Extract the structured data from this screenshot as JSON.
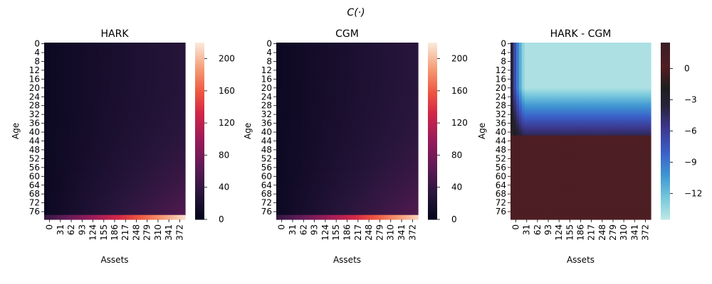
{
  "figure_title": "C(·)",
  "chart_data": [
    {
      "type": "heatmap",
      "title": "HARK",
      "xlabel": "Assets",
      "ylabel": "Age",
      "x_ticks": [
        "0",
        "31",
        "62",
        "93",
        "124",
        "155",
        "186",
        "217",
        "248",
        "279",
        "310",
        "341",
        "372"
      ],
      "y_ticks": [
        "0",
        "4",
        "8",
        "12",
        "16",
        "20",
        "24",
        "28",
        "32",
        "36",
        "40",
        "44",
        "48",
        "52",
        "56",
        "60",
        "64",
        "68",
        "72",
        "76"
      ],
      "colormap": "rocket",
      "colorbar_ticks": [
        0,
        40,
        80,
        120,
        160,
        200
      ],
      "vmin": 0,
      "vmax": 220,
      "description_values": {
        "min_at": "low assets, young age",
        "max_at": "highest assets, oldest age",
        "max_value": 215
      }
    },
    {
      "type": "heatmap",
      "title": "CGM",
      "xlabel": "Assets",
      "ylabel": "Age",
      "x_ticks": [
        "0",
        "31",
        "62",
        "93",
        "124",
        "155",
        "186",
        "217",
        "248",
        "279",
        "310",
        "341",
        "372"
      ],
      "y_ticks": [
        "0",
        "4",
        "8",
        "12",
        "16",
        "20",
        "24",
        "28",
        "32",
        "36",
        "40",
        "44",
        "48",
        "52",
        "56",
        "60",
        "64",
        "68",
        "72",
        "76"
      ],
      "colormap": "rocket",
      "colorbar_ticks": [
        0,
        40,
        80,
        120,
        160,
        200
      ],
      "vmin": 0,
      "vmax": 220,
      "description_values": {
        "max_value": 210
      }
    },
    {
      "type": "heatmap",
      "title": "HARK - CGM",
      "xlabel": "Assets",
      "ylabel": "Age",
      "x_ticks": [
        "0",
        "31",
        "62",
        "93",
        "124",
        "155",
        "186",
        "217",
        "248",
        "279",
        "310",
        "341",
        "372"
      ],
      "y_ticks": [
        "0",
        "4",
        "8",
        "12",
        "16",
        "20",
        "24",
        "28",
        "32",
        "36",
        "40",
        "44",
        "48",
        "52",
        "56",
        "60",
        "64",
        "68",
        "72",
        "76"
      ],
      "colormap": "icefire",
      "colorbar_ticks": [
        0,
        -3,
        -6,
        -9,
        -12
      ],
      "vmin": -14.5,
      "vmax": 2.5,
      "description_values": {
        "min_value": -14,
        "rows_with_large_negative": "ages 0-41",
        "rows_near_zero": "ages 42-79"
      }
    }
  ]
}
